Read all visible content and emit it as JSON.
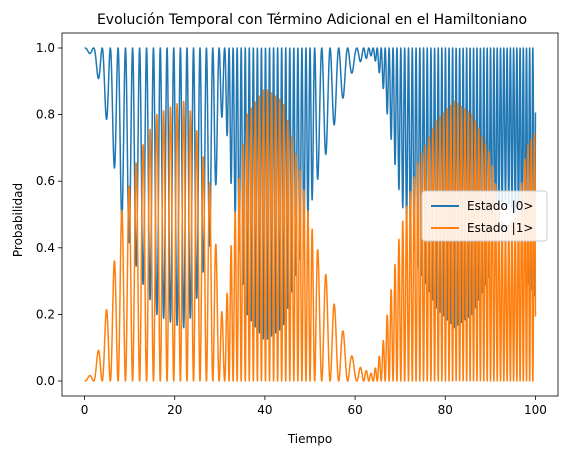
{
  "chart_data": {
    "type": "line",
    "title": "Evolución Temporal con Término Adicional en el Hamiltoniano",
    "xlabel": "Tiempo",
    "ylabel": "Probabilidad",
    "xlim": [
      -5,
      105
    ],
    "ylim": [
      -0.045,
      1.045
    ],
    "xticks": [
      0,
      20,
      40,
      60,
      80,
      100
    ],
    "xtick_labels": [
      "0",
      "20",
      "40",
      "60",
      "80",
      "100"
    ],
    "yticks": [
      0.0,
      0.2,
      0.4,
      0.6,
      0.8,
      1.0
    ],
    "ytick_labels": [
      "0.0",
      "0.2",
      "0.4",
      "0.6",
      "0.8",
      "1.0"
    ],
    "grid": false,
    "legend_position": "center-right",
    "sampling": {
      "t_start": 0,
      "t_end": 100,
      "step": 0.02
    },
    "series": [
      {
        "name": "Estado |0>",
        "color": "#1f77b4"
      },
      {
        "name": "Estado |1>",
        "color": "#ff7f0e"
      }
    ],
    "envelope": {
      "description_points_t": [
        0,
        2,
        4,
        6,
        8,
        12,
        16,
        20,
        22,
        24,
        28,
        31,
        32,
        36,
        40,
        44,
        48,
        50,
        52,
        54,
        56,
        60,
        64,
        66,
        70,
        74,
        78,
        82,
        86,
        90,
        93,
        96,
        98,
        100
      ],
      "max_p1": [
        0.0,
        0.03,
        0.15,
        0.3,
        0.5,
        0.68,
        0.8,
        0.83,
        0.84,
        0.8,
        0.58,
        0.13,
        0.35,
        0.8,
        0.88,
        0.84,
        0.62,
        0.48,
        0.38,
        0.3,
        0.2,
        0.05,
        0.02,
        0.1,
        0.45,
        0.66,
        0.78,
        0.84,
        0.8,
        0.68,
        0.45,
        0.5,
        0.7,
        0.75
      ]
    },
    "beat_frequency": {
      "t": [
        0,
        10,
        30,
        32,
        50,
        52,
        60,
        64,
        100
      ],
      "omega": [
        3.0,
        4.0,
        4.5,
        7.0,
        7.0,
        3.5,
        3.0,
        7.0,
        9.0
      ]
    }
  }
}
